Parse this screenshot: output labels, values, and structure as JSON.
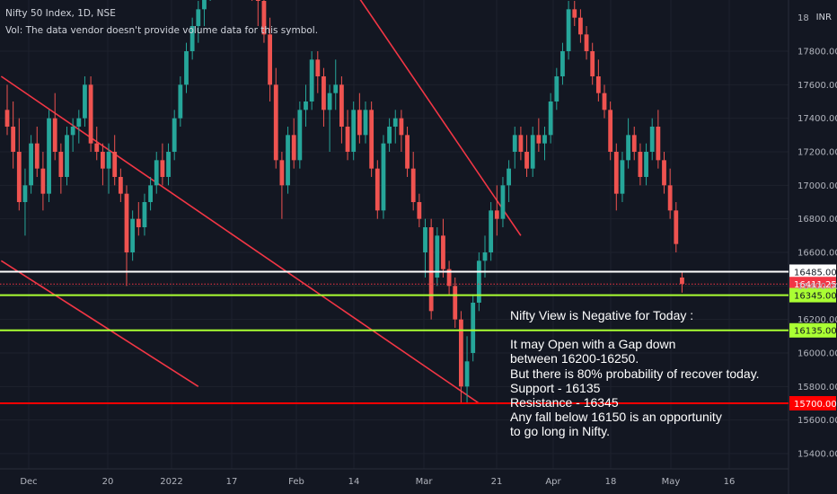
{
  "header": {
    "symbol_line": "Nifty 50 Index, 1D, NSE",
    "volume_line": "Vol: The data vendor doesn't provide volume data for this symbol."
  },
  "currency": "INR",
  "annotation": {
    "lines": [
      "Nifty View is Negative for Today :",
      "",
      "It may Open with a Gap down",
      "between 16200-16250.",
      "But there is 80% probability of recover today.",
      "Support - 16135",
      "Resistance - 16345",
      "Any fall below 16150 is an opportunity",
      "to go long in Nifty."
    ]
  },
  "colors": {
    "up": "#26a69a",
    "down": "#ef5350",
    "trendline": "#f23645",
    "grid": "#1e222d"
  },
  "chart_data": {
    "type": "candlestick",
    "yaxis": {
      "min": 15300,
      "max": 18900,
      "ticks": [
        15400,
        15600,
        15800,
        16000,
        16200,
        16400,
        16600,
        16800,
        17000,
        17200,
        17400,
        17600,
        17800
      ]
    },
    "xaxis": {
      "labels": [
        "Dec",
        "20",
        "2022",
        "17",
        "Feb",
        "14",
        "Mar",
        "21",
        "Apr",
        "18",
        "May",
        "16"
      ]
    },
    "top_tick_partial": "18",
    "price_levels": [
      {
        "value": 16485,
        "label": "16485.00",
        "color": "#ffffff"
      },
      {
        "value": 16411.25,
        "label": "16411.25",
        "color": "#f23645",
        "style": "dotted"
      },
      {
        "value": 16345,
        "label": "16345.00",
        "color": "#aaff33"
      },
      {
        "value": 16135,
        "label": "16135.00",
        "color": "#aaff33"
      },
      {
        "value": 15700,
        "label": "15700.00",
        "color": "#ff0000"
      }
    ],
    "candles": [
      {
        "o": 17450,
        "h": 17600,
        "l": 17300,
        "c": 17350
      },
      {
        "o": 17350,
        "h": 17500,
        "l": 17100,
        "c": 17200
      },
      {
        "o": 17200,
        "h": 17400,
        "l": 16850,
        "c": 16900
      },
      {
        "o": 16900,
        "h": 17100,
        "l": 16700,
        "c": 17000
      },
      {
        "o": 17000,
        "h": 17300,
        "l": 16950,
        "c": 17250
      },
      {
        "o": 17250,
        "h": 17350,
        "l": 17050,
        "c": 17100
      },
      {
        "o": 17100,
        "h": 17200,
        "l": 16850,
        "c": 16950
      },
      {
        "o": 16950,
        "h": 17450,
        "l": 16900,
        "c": 17400
      },
      {
        "o": 17400,
        "h": 17550,
        "l": 17150,
        "c": 17200
      },
      {
        "o": 17200,
        "h": 17250,
        "l": 16950,
        "c": 17050
      },
      {
        "o": 17050,
        "h": 17350,
        "l": 17000,
        "c": 17300
      },
      {
        "o": 17300,
        "h": 17400,
        "l": 17200,
        "c": 17350
      },
      {
        "o": 17350,
        "h": 17450,
        "l": 17250,
        "c": 17400
      },
      {
        "o": 17400,
        "h": 17650,
        "l": 17350,
        "c": 17600
      },
      {
        "o": 17600,
        "h": 17650,
        "l": 17200,
        "c": 17250
      },
      {
        "o": 17250,
        "h": 17350,
        "l": 17150,
        "c": 17200
      },
      {
        "o": 17200,
        "h": 17250,
        "l": 17000,
        "c": 17100
      },
      {
        "o": 17100,
        "h": 17250,
        "l": 16950,
        "c": 17200
      },
      {
        "o": 17200,
        "h": 17300,
        "l": 17000,
        "c": 17050
      },
      {
        "o": 17050,
        "h": 17100,
        "l": 16900,
        "c": 16950
      },
      {
        "o": 16950,
        "h": 17000,
        "l": 16400,
        "c": 16600
      },
      {
        "o": 16600,
        "h": 16850,
        "l": 16550,
        "c": 16800
      },
      {
        "o": 16800,
        "h": 16900,
        "l": 16700,
        "c": 16750
      },
      {
        "o": 16750,
        "h": 16950,
        "l": 16700,
        "c": 16900
      },
      {
        "o": 16900,
        "h": 17050,
        "l": 16850,
        "c": 17000
      },
      {
        "o": 17000,
        "h": 17200,
        "l": 16950,
        "c": 17150
      },
      {
        "o": 17150,
        "h": 17250,
        "l": 17000,
        "c": 17050
      },
      {
        "o": 17050,
        "h": 17250,
        "l": 17000,
        "c": 17200
      },
      {
        "o": 17200,
        "h": 17450,
        "l": 17150,
        "c": 17400
      },
      {
        "o": 17400,
        "h": 17650,
        "l": 17350,
        "c": 17600
      },
      {
        "o": 17600,
        "h": 17850,
        "l": 17550,
        "c": 17800
      },
      {
        "o": 17800,
        "h": 18000,
        "l": 17750,
        "c": 17950
      },
      {
        "o": 17950,
        "h": 18100,
        "l": 17850,
        "c": 18050
      },
      {
        "o": 18050,
        "h": 18250,
        "l": 17950,
        "c": 18150
      },
      {
        "o": 18150,
        "h": 18400,
        "l": 18100,
        "c": 18350
      },
      {
        "o": 18350,
        "h": 18500,
        "l": 18250,
        "c": 18450
      },
      {
        "o": 18450,
        "h": 18550,
        "l": 18350,
        "c": 18400
      },
      {
        "o": 18400,
        "h": 18600,
        "l": 18300,
        "c": 18550
      },
      {
        "o": 18550,
        "h": 18700,
        "l": 18450,
        "c": 18650
      },
      {
        "o": 18650,
        "h": 18800,
        "l": 18500,
        "c": 18750
      },
      {
        "o": 18750,
        "h": 18850,
        "l": 18550,
        "c": 18600
      },
      {
        "o": 18600,
        "h": 18700,
        "l": 18100,
        "c": 18150
      },
      {
        "o": 18150,
        "h": 18300,
        "l": 17950,
        "c": 18100
      },
      {
        "o": 18100,
        "h": 18150,
        "l": 17850,
        "c": 17900
      },
      {
        "o": 17900,
        "h": 18000,
        "l": 17500,
        "c": 17600
      },
      {
        "o": 17600,
        "h": 17700,
        "l": 17100,
        "c": 17150
      },
      {
        "o": 17150,
        "h": 17200,
        "l": 16800,
        "c": 17000
      },
      {
        "o": 17000,
        "h": 17350,
        "l": 16950,
        "c": 17300
      },
      {
        "o": 17300,
        "h": 17400,
        "l": 17100,
        "c": 17150
      },
      {
        "o": 17150,
        "h": 17500,
        "l": 17100,
        "c": 17450
      },
      {
        "o": 17450,
        "h": 17600,
        "l": 17350,
        "c": 17500
      },
      {
        "o": 17500,
        "h": 17800,
        "l": 17450,
        "c": 17750
      },
      {
        "o": 17750,
        "h": 17800,
        "l": 17550,
        "c": 17650
      },
      {
        "o": 17650,
        "h": 17700,
        "l": 17350,
        "c": 17450
      },
      {
        "o": 17450,
        "h": 17600,
        "l": 17200,
        "c": 17550
      },
      {
        "o": 17550,
        "h": 17750,
        "l": 17450,
        "c": 17600
      },
      {
        "o": 17600,
        "h": 17650,
        "l": 17250,
        "c": 17350
      },
      {
        "o": 17350,
        "h": 17450,
        "l": 17150,
        "c": 17200
      },
      {
        "o": 17200,
        "h": 17500,
        "l": 17150,
        "c": 17450
      },
      {
        "o": 17450,
        "h": 17550,
        "l": 17250,
        "c": 17300
      },
      {
        "o": 17300,
        "h": 17500,
        "l": 17250,
        "c": 17450
      },
      {
        "o": 17450,
        "h": 17500,
        "l": 17050,
        "c": 17100
      },
      {
        "o": 17100,
        "h": 17150,
        "l": 16800,
        "c": 16850
      },
      {
        "o": 16850,
        "h": 17300,
        "l": 16800,
        "c": 17250
      },
      {
        "o": 17250,
        "h": 17400,
        "l": 17200,
        "c": 17350
      },
      {
        "o": 17350,
        "h": 17450,
        "l": 17250,
        "c": 17400
      },
      {
        "o": 17400,
        "h": 17450,
        "l": 17200,
        "c": 17300
      },
      {
        "o": 17300,
        "h": 17350,
        "l": 17050,
        "c": 17100
      },
      {
        "o": 17100,
        "h": 17200,
        "l": 16850,
        "c": 16900
      },
      {
        "o": 16900,
        "h": 16950,
        "l": 16750,
        "c": 16800
      },
      {
        "o": 16600,
        "h": 16800,
        "l": 16450,
        "c": 16750
      },
      {
        "o": 16750,
        "h": 16800,
        "l": 16200,
        "c": 16250
      },
      {
        "o": 16450,
        "h": 16750,
        "l": 16400,
        "c": 16700
      },
      {
        "o": 16700,
        "h": 16800,
        "l": 16450,
        "c": 16500
      },
      {
        "o": 16500,
        "h": 16550,
        "l": 16350,
        "c": 16400
      },
      {
        "o": 16400,
        "h": 16450,
        "l": 16150,
        "c": 16200
      },
      {
        "o": 16200,
        "h": 16250,
        "l": 15700,
        "c": 15800
      },
      {
        "o": 15800,
        "h": 16100,
        "l": 15700,
        "c": 15950
      },
      {
        "o": 16000,
        "h": 16350,
        "l": 15950,
        "c": 16300
      },
      {
        "o": 16300,
        "h": 16600,
        "l": 16250,
        "c": 16550
      },
      {
        "o": 16550,
        "h": 16700,
        "l": 16450,
        "c": 16600
      },
      {
        "o": 16600,
        "h": 16900,
        "l": 16550,
        "c": 16850
      },
      {
        "o": 16850,
        "h": 17000,
        "l": 16700,
        "c": 16800
      },
      {
        "o": 16800,
        "h": 17050,
        "l": 16750,
        "c": 17000
      },
      {
        "o": 17000,
        "h": 17150,
        "l": 16900,
        "c": 17100
      },
      {
        "o": 17200,
        "h": 17350,
        "l": 17100,
        "c": 17300
      },
      {
        "o": 17300,
        "h": 17350,
        "l": 17150,
        "c": 17200
      },
      {
        "o": 17200,
        "h": 17300,
        "l": 17050,
        "c": 17100
      },
      {
        "o": 17100,
        "h": 17350,
        "l": 17050,
        "c": 17300
      },
      {
        "o": 17300,
        "h": 17400,
        "l": 17200,
        "c": 17250
      },
      {
        "o": 17250,
        "h": 17350,
        "l": 17150,
        "c": 17300
      },
      {
        "o": 17300,
        "h": 17550,
        "l": 17250,
        "c": 17500
      },
      {
        "o": 17500,
        "h": 17700,
        "l": 17450,
        "c": 17650
      },
      {
        "o": 17650,
        "h": 17850,
        "l": 17600,
        "c": 17800
      },
      {
        "o": 17800,
        "h": 18100,
        "l": 17750,
        "c": 18050
      },
      {
        "o": 18050,
        "h": 18100,
        "l": 17950,
        "c": 18000
      },
      {
        "o": 18000,
        "h": 18050,
        "l": 17850,
        "c": 17900
      },
      {
        "o": 17900,
        "h": 17950,
        "l": 17750,
        "c": 17800
      },
      {
        "o": 17800,
        "h": 17850,
        "l": 17600,
        "c": 17650
      },
      {
        "o": 17650,
        "h": 17750,
        "l": 17500,
        "c": 17550
      },
      {
        "o": 17550,
        "h": 17600,
        "l": 17400,
        "c": 17450
      },
      {
        "o": 17450,
        "h": 17500,
        "l": 17150,
        "c": 17200
      },
      {
        "o": 17200,
        "h": 17250,
        "l": 16850,
        "c": 16950
      },
      {
        "o": 16950,
        "h": 17200,
        "l": 16900,
        "c": 17150
      },
      {
        "o": 17150,
        "h": 17400,
        "l": 17100,
        "c": 17300
      },
      {
        "o": 17300,
        "h": 17350,
        "l": 17150,
        "c": 17200
      },
      {
        "o": 17200,
        "h": 17250,
        "l": 17000,
        "c": 17050
      },
      {
        "o": 17050,
        "h": 17250,
        "l": 17000,
        "c": 17200
      },
      {
        "o": 17200,
        "h": 17400,
        "l": 17150,
        "c": 17350
      },
      {
        "o": 17350,
        "h": 17450,
        "l": 17100,
        "c": 17150
      },
      {
        "o": 17150,
        "h": 17200,
        "l": 16950,
        "c": 17000
      },
      {
        "o": 17000,
        "h": 17100,
        "l": 16800,
        "c": 16850
      },
      {
        "o": 16850,
        "h": 16900,
        "l": 16600,
        "c": 16650
      },
      {
        "o": 16450,
        "h": 16480,
        "l": 16360,
        "c": 16411.25
      }
    ],
    "trendlines": [
      {
        "from": {
          "i": -1,
          "v": 17650
        },
        "to": {
          "i": 79,
          "v": 15700
        }
      },
      {
        "from": {
          "i": -1,
          "v": 16550
        },
        "to": {
          "i": 32,
          "v": 15800
        }
      },
      {
        "from": {
          "i": 44,
          "v": 18900
        },
        "to": {
          "i": 86,
          "v": 16700
        }
      }
    ]
  }
}
